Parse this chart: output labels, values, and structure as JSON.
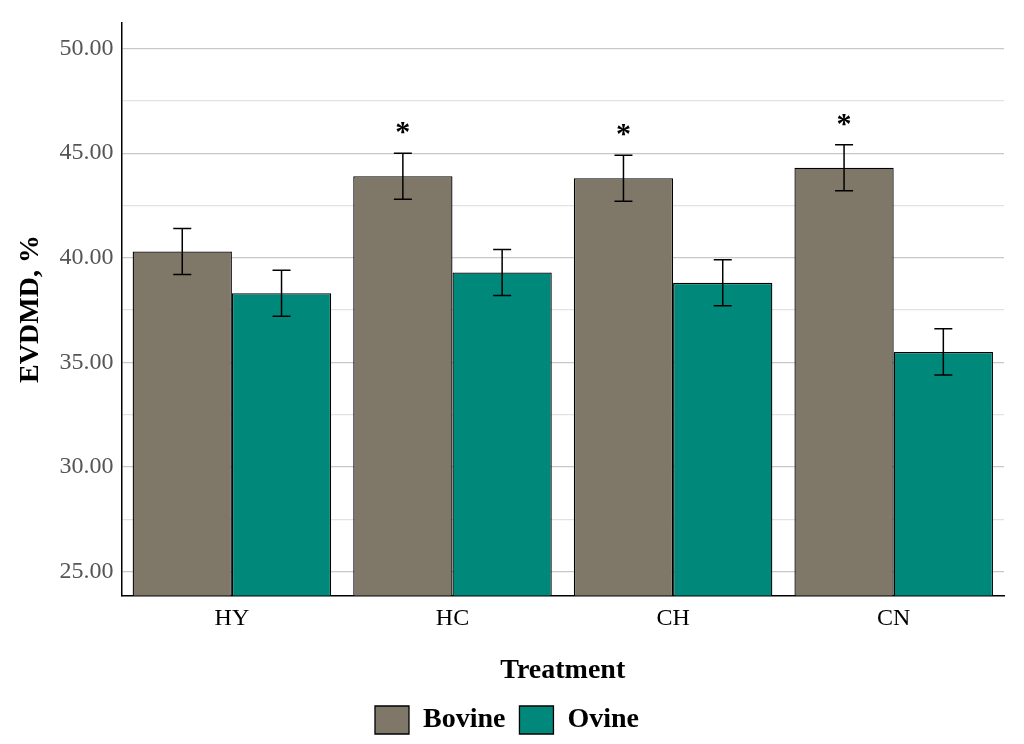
{
  "chart_data": {
    "type": "bar",
    "xlabel": "Treatment",
    "ylabel": "EVDMD, %",
    "categories": [
      "HY",
      "HC",
      "CH",
      "CN"
    ],
    "series": [
      {
        "name": "Bovine",
        "color": "#7f7869",
        "values": [
          40.3,
          43.9,
          43.8,
          44.3
        ],
        "errors": [
          1.1,
          1.1,
          1.1,
          1.1
        ]
      },
      {
        "name": "Ovine",
        "color": "#00897b",
        "values": [
          38.3,
          39.3,
          38.8,
          35.5
        ],
        "errors": [
          1.1,
          1.1,
          1.1,
          1.1
        ]
      }
    ],
    "ylim": [
      23.85,
      51.25
    ],
    "yticks": [
      {
        "value": 25,
        "label": "25.00"
      },
      {
        "value": 27.5,
        "label": null
      },
      {
        "value": 30,
        "label": "30.00"
      },
      {
        "value": 32.5,
        "label": null
      },
      {
        "value": 35,
        "label": "35.00"
      },
      {
        "value": 37.5,
        "label": null
      },
      {
        "value": 40,
        "label": "40.00"
      },
      {
        "value": 42.5,
        "label": null
      },
      {
        "value": 45,
        "label": "45.00"
      },
      {
        "value": 47.5,
        "label": null
      },
      {
        "value": 50,
        "label": "50.00"
      }
    ],
    "annotations": [
      {
        "text": "*",
        "x": "HC",
        "y": 43.9
      },
      {
        "text": "*",
        "x": "CH",
        "y": 43.8
      },
      {
        "text": "*",
        "x": "CN",
        "y": 44.3
      }
    ],
    "grid": "y",
    "legend": "bottom"
  }
}
